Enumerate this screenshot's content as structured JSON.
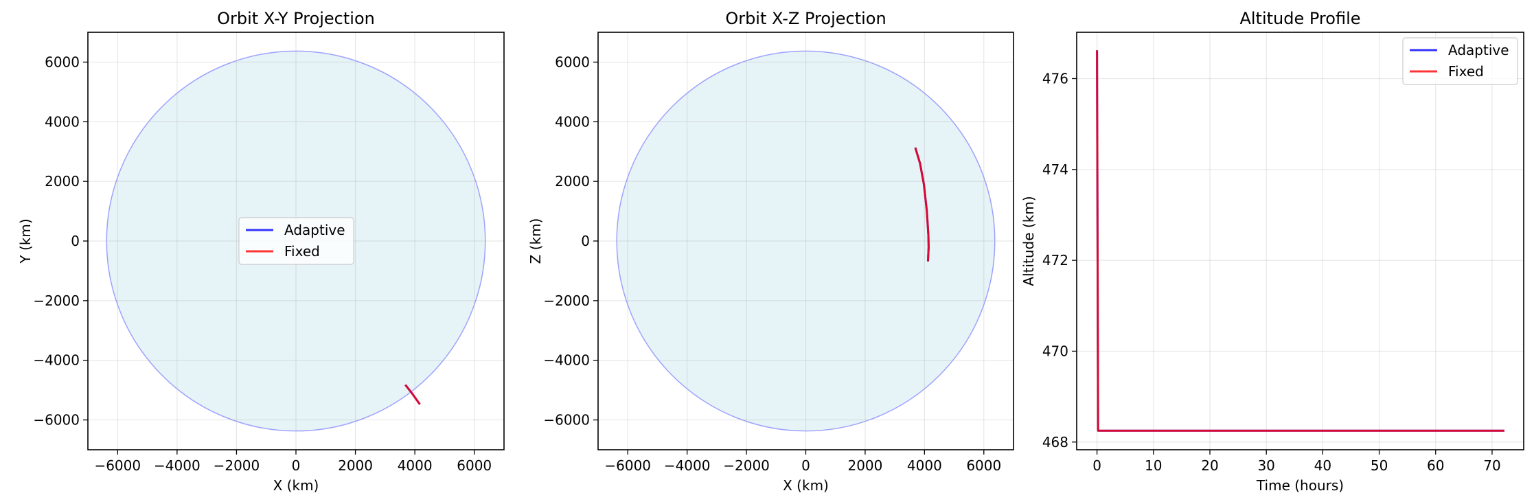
{
  "chart_data": [
    {
      "type": "line",
      "title": "Orbit X-Y Projection",
      "xlabel": "X (km)",
      "ylabel": "Y (km)",
      "xlim": [
        -7000,
        7000
      ],
      "ylim": [
        -7000,
        7000
      ],
      "xticks": [
        -6000,
        -4000,
        -2000,
        0,
        2000,
        4000,
        6000
      ],
      "yticks": [
        -6000,
        -4000,
        -2000,
        0,
        2000,
        4000,
        6000
      ],
      "xtick_labels": [
        "−6000",
        "−4000",
        "−2000",
        "0",
        "2000",
        "4000",
        "6000"
      ],
      "ytick_labels": [
        "−6000",
        "−4000",
        "−2000",
        "0",
        "2000",
        "4000",
        "6000"
      ],
      "grid": true,
      "legend": "center",
      "earth_radius": 6371,
      "series": [
        {
          "name": "Adaptive",
          "color": "#0000ff",
          "x": [
            3700,
            3900,
            4150
          ],
          "y": [
            -4850,
            -5100,
            -5450
          ]
        },
        {
          "name": "Fixed",
          "color": "#ff0000",
          "x": [
            3700,
            3900,
            4150
          ],
          "y": [
            -4850,
            -5100,
            -5450
          ]
        }
      ]
    },
    {
      "type": "line",
      "title": "Orbit X-Z Projection",
      "xlabel": "X (km)",
      "ylabel": "Z (km)",
      "xlim": [
        -7000,
        7000
      ],
      "ylim": [
        -7000,
        7000
      ],
      "xticks": [
        -6000,
        -4000,
        -2000,
        0,
        2000,
        4000,
        6000
      ],
      "yticks": [
        -6000,
        -4000,
        -2000,
        0,
        2000,
        4000,
        6000
      ],
      "xtick_labels": [
        "−6000",
        "−4000",
        "−2000",
        "0",
        "2000",
        "4000",
        "6000"
      ],
      "ytick_labels": [
        "−6000",
        "−4000",
        "−2000",
        "0",
        "2000",
        "4000",
        "6000"
      ],
      "grid": true,
      "earth_radius": 6371,
      "series": [
        {
          "name": "Adaptive",
          "color": "#0000ff",
          "x": [
            3700,
            3850,
            3980,
            4080,
            4130,
            4140,
            4120
          ],
          "y": [
            3100,
            2600,
            1900,
            1000,
            200,
            -200,
            -650
          ]
        },
        {
          "name": "Fixed",
          "color": "#ff0000",
          "x": [
            3700,
            3850,
            3980,
            4080,
            4130,
            4140,
            4120
          ],
          "y": [
            3100,
            2600,
            1900,
            1000,
            200,
            -200,
            -650
          ]
        }
      ]
    },
    {
      "type": "line",
      "title": "Altitude Profile",
      "xlabel": "Time (hours)",
      "ylabel": "Altitude (km)",
      "xlim": [
        -3.6,
        75.6
      ],
      "ylim": [
        467.83,
        477.02
      ],
      "xticks": [
        0,
        10,
        20,
        30,
        40,
        50,
        60,
        70
      ],
      "yticks": [
        468,
        470,
        472,
        474,
        476
      ],
      "xtick_labels": [
        "0",
        "10",
        "20",
        "30",
        "40",
        "50",
        "60",
        "70"
      ],
      "ytick_labels": [
        "468",
        "470",
        "472",
        "474",
        "476"
      ],
      "grid": true,
      "legend": "top-right",
      "series": [
        {
          "name": "Adaptive",
          "color": "#0000ff",
          "x": [
            0,
            0.2,
            72
          ],
          "y": [
            476.6,
            468.25,
            468.25
          ]
        },
        {
          "name": "Fixed",
          "color": "#ff0000",
          "x": [
            0,
            0.2,
            72
          ],
          "y": [
            476.6,
            468.25,
            468.25
          ]
        }
      ]
    }
  ]
}
